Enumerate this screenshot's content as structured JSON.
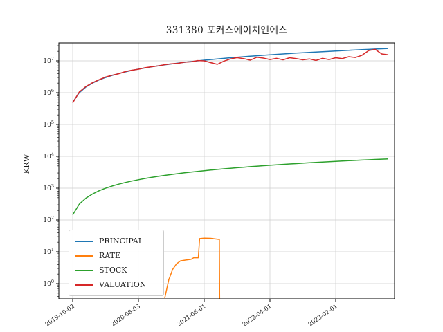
{
  "chart_data": {
    "type": "line",
    "title": "331380 포커스에이치엔에스",
    "ylabel": "KRW",
    "xlabel": "",
    "y_scale": "log",
    "ylim": [
      0.33,
      36000000
    ],
    "grid": true,
    "grid_color": "#cccccc",
    "legend_position": "lower left",
    "x_unit": "months since 2019-10-02",
    "x_ticks": [
      {
        "m": 0,
        "label": "2019-10-02"
      },
      {
        "m": 10,
        "label": "2020-08-03"
      },
      {
        "m": 20,
        "label": "2021-06-01"
      },
      {
        "m": 30,
        "label": "2022-04-01"
      },
      {
        "m": 40,
        "label": "2023-02-01"
      }
    ],
    "y_tick_exponents": [
      0,
      1,
      2,
      3,
      4,
      5,
      6,
      7
    ],
    "series": [
      {
        "name": "PRINCIPAL",
        "color": "#1f77b4",
        "values": [
          500000,
          1000000,
          1500000,
          2000000,
          2500000,
          3000000,
          3500000,
          4000000,
          4500000,
          5000000,
          5500000,
          6000000,
          6500000,
          7000000,
          7500000,
          8000000,
          8500000,
          9000000,
          9500000,
          10000000,
          10500000,
          11000000,
          11500000,
          12000000,
          12500000,
          13000000,
          13500000,
          14000000,
          14500000,
          15000000,
          15500000,
          16000000,
          16500000,
          17000000,
          17500000,
          18000000,
          18500000,
          19000000,
          19500000,
          20000000,
          20500000,
          21000000,
          21500000,
          22000000,
          22500000,
          23000000,
          23500000,
          24000000,
          24500000
        ]
      },
      {
        "name": "RATE",
        "color": "#ff7f0e",
        "points": [
          [
            14,
            0.35
          ],
          [
            14.6,
            1.3
          ],
          [
            15.2,
            2.8
          ],
          [
            15.8,
            4.2
          ],
          [
            16.4,
            5.2
          ],
          [
            17.2,
            5.5
          ],
          [
            18,
            5.8
          ],
          [
            18.4,
            6.5
          ],
          [
            19.1,
            6.5
          ],
          [
            19.3,
            26
          ],
          [
            20,
            27
          ],
          [
            21,
            26.5
          ],
          [
            22,
            25
          ],
          [
            22.3,
            24.5
          ],
          [
            22.35,
            0.33
          ]
        ]
      },
      {
        "name": "STOCK",
        "color": "#2ca02c",
        "values": [
          145,
          315,
          485,
          655,
          825,
          995,
          1165,
          1335,
          1505,
          1675,
          1845,
          2015,
          2185,
          2355,
          2525,
          2695,
          2865,
          3035,
          3205,
          3375,
          3545,
          3715,
          3885,
          4055,
          4225,
          4395,
          4565,
          4735,
          4905,
          5075,
          5245,
          5415,
          5585,
          5755,
          5925,
          6095,
          6265,
          6435,
          6605,
          6775,
          6945,
          7115,
          7285,
          7455,
          7625,
          7795,
          7965,
          8135,
          8305
        ]
      },
      {
        "name": "VALUATION",
        "color": "#d62728",
        "values": [
          480000,
          1050000,
          1550000,
          2050000,
          2550000,
          3100000,
          3550000,
          3950000,
          4600000,
          5100000,
          5450000,
          6100000,
          6550000,
          6950000,
          7600000,
          8100000,
          8350000,
          9100000,
          9300000,
          10200000,
          10000000,
          8800000,
          7800000,
          9800000,
          11500000,
          12600000,
          11800000,
          10500000,
          13000000,
          12200000,
          11000000,
          12000000,
          10800000,
          12500000,
          11800000,
          10800000,
          11500000,
          10300000,
          12000000,
          11000000,
          12500000,
          11800000,
          13500000,
          12800000,
          15000000,
          21000000,
          23000000,
          16500000,
          15500000
        ]
      }
    ]
  }
}
